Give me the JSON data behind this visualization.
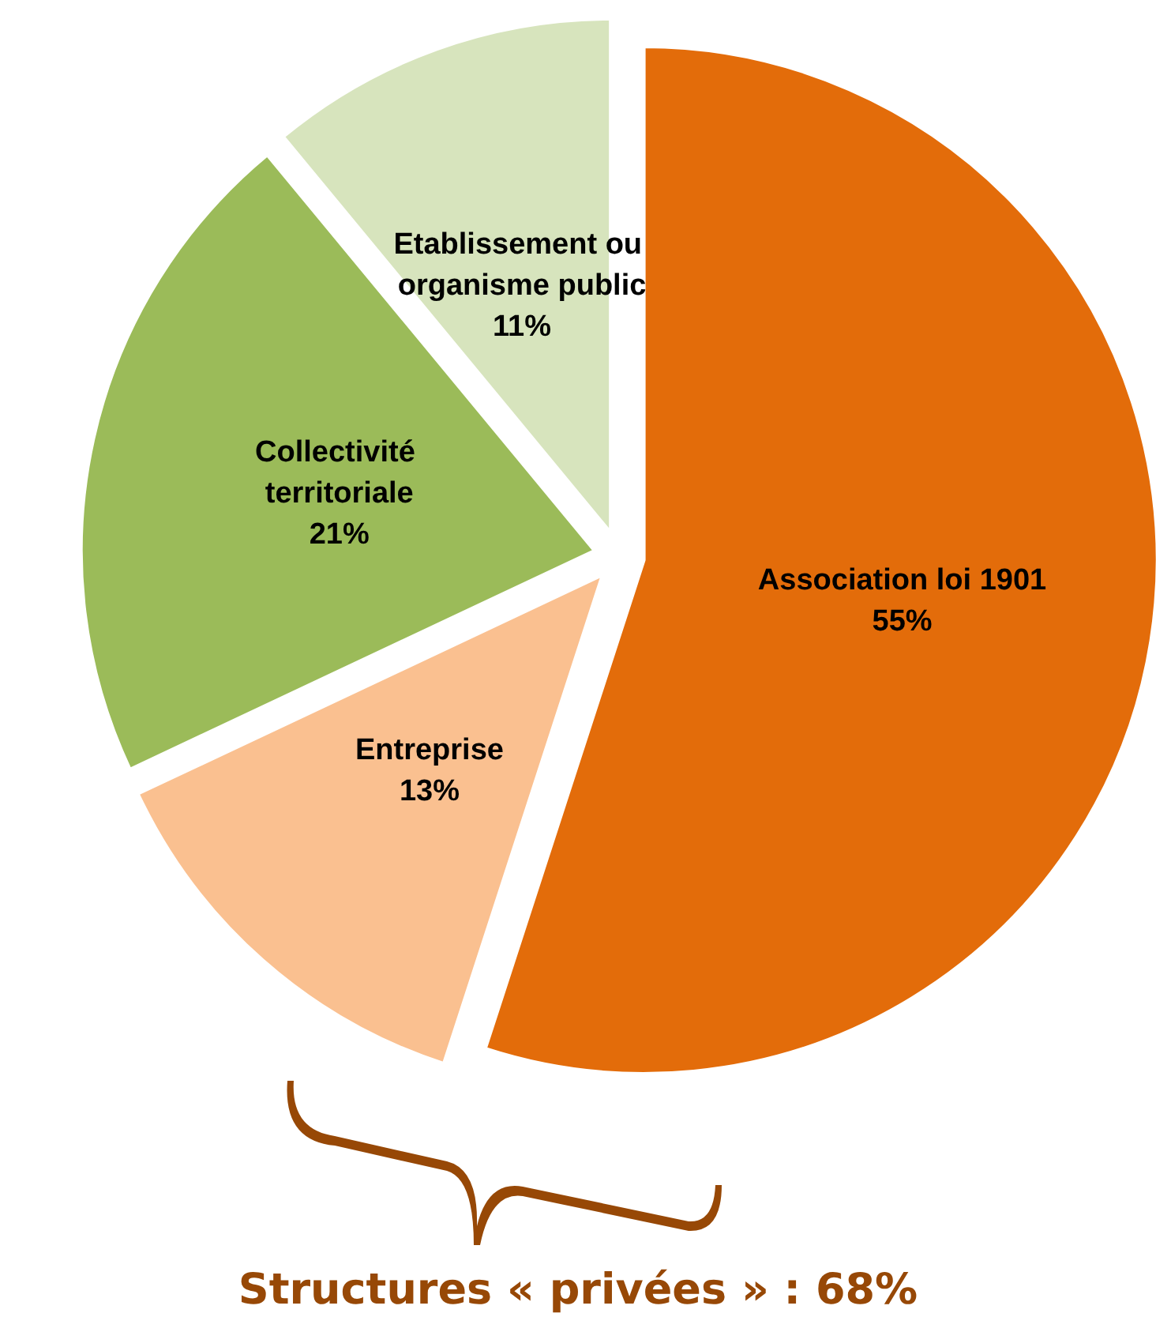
{
  "chart_data": {
    "type": "pie",
    "categories": [
      "Association loi 1901",
      "Entreprise",
      "Collectivité territoriale",
      "Etablissement ou organisme public"
    ],
    "values": [
      55,
      13,
      21,
      11
    ],
    "value_labels": [
      "55%",
      "13%",
      "21%",
      "11%"
    ],
    "colors": [
      "#e36c0a",
      "#fac090",
      "#9bbb59",
      "#d7e4bd"
    ],
    "annotations": [
      "Structures « privées » : 68%"
    ]
  }
}
